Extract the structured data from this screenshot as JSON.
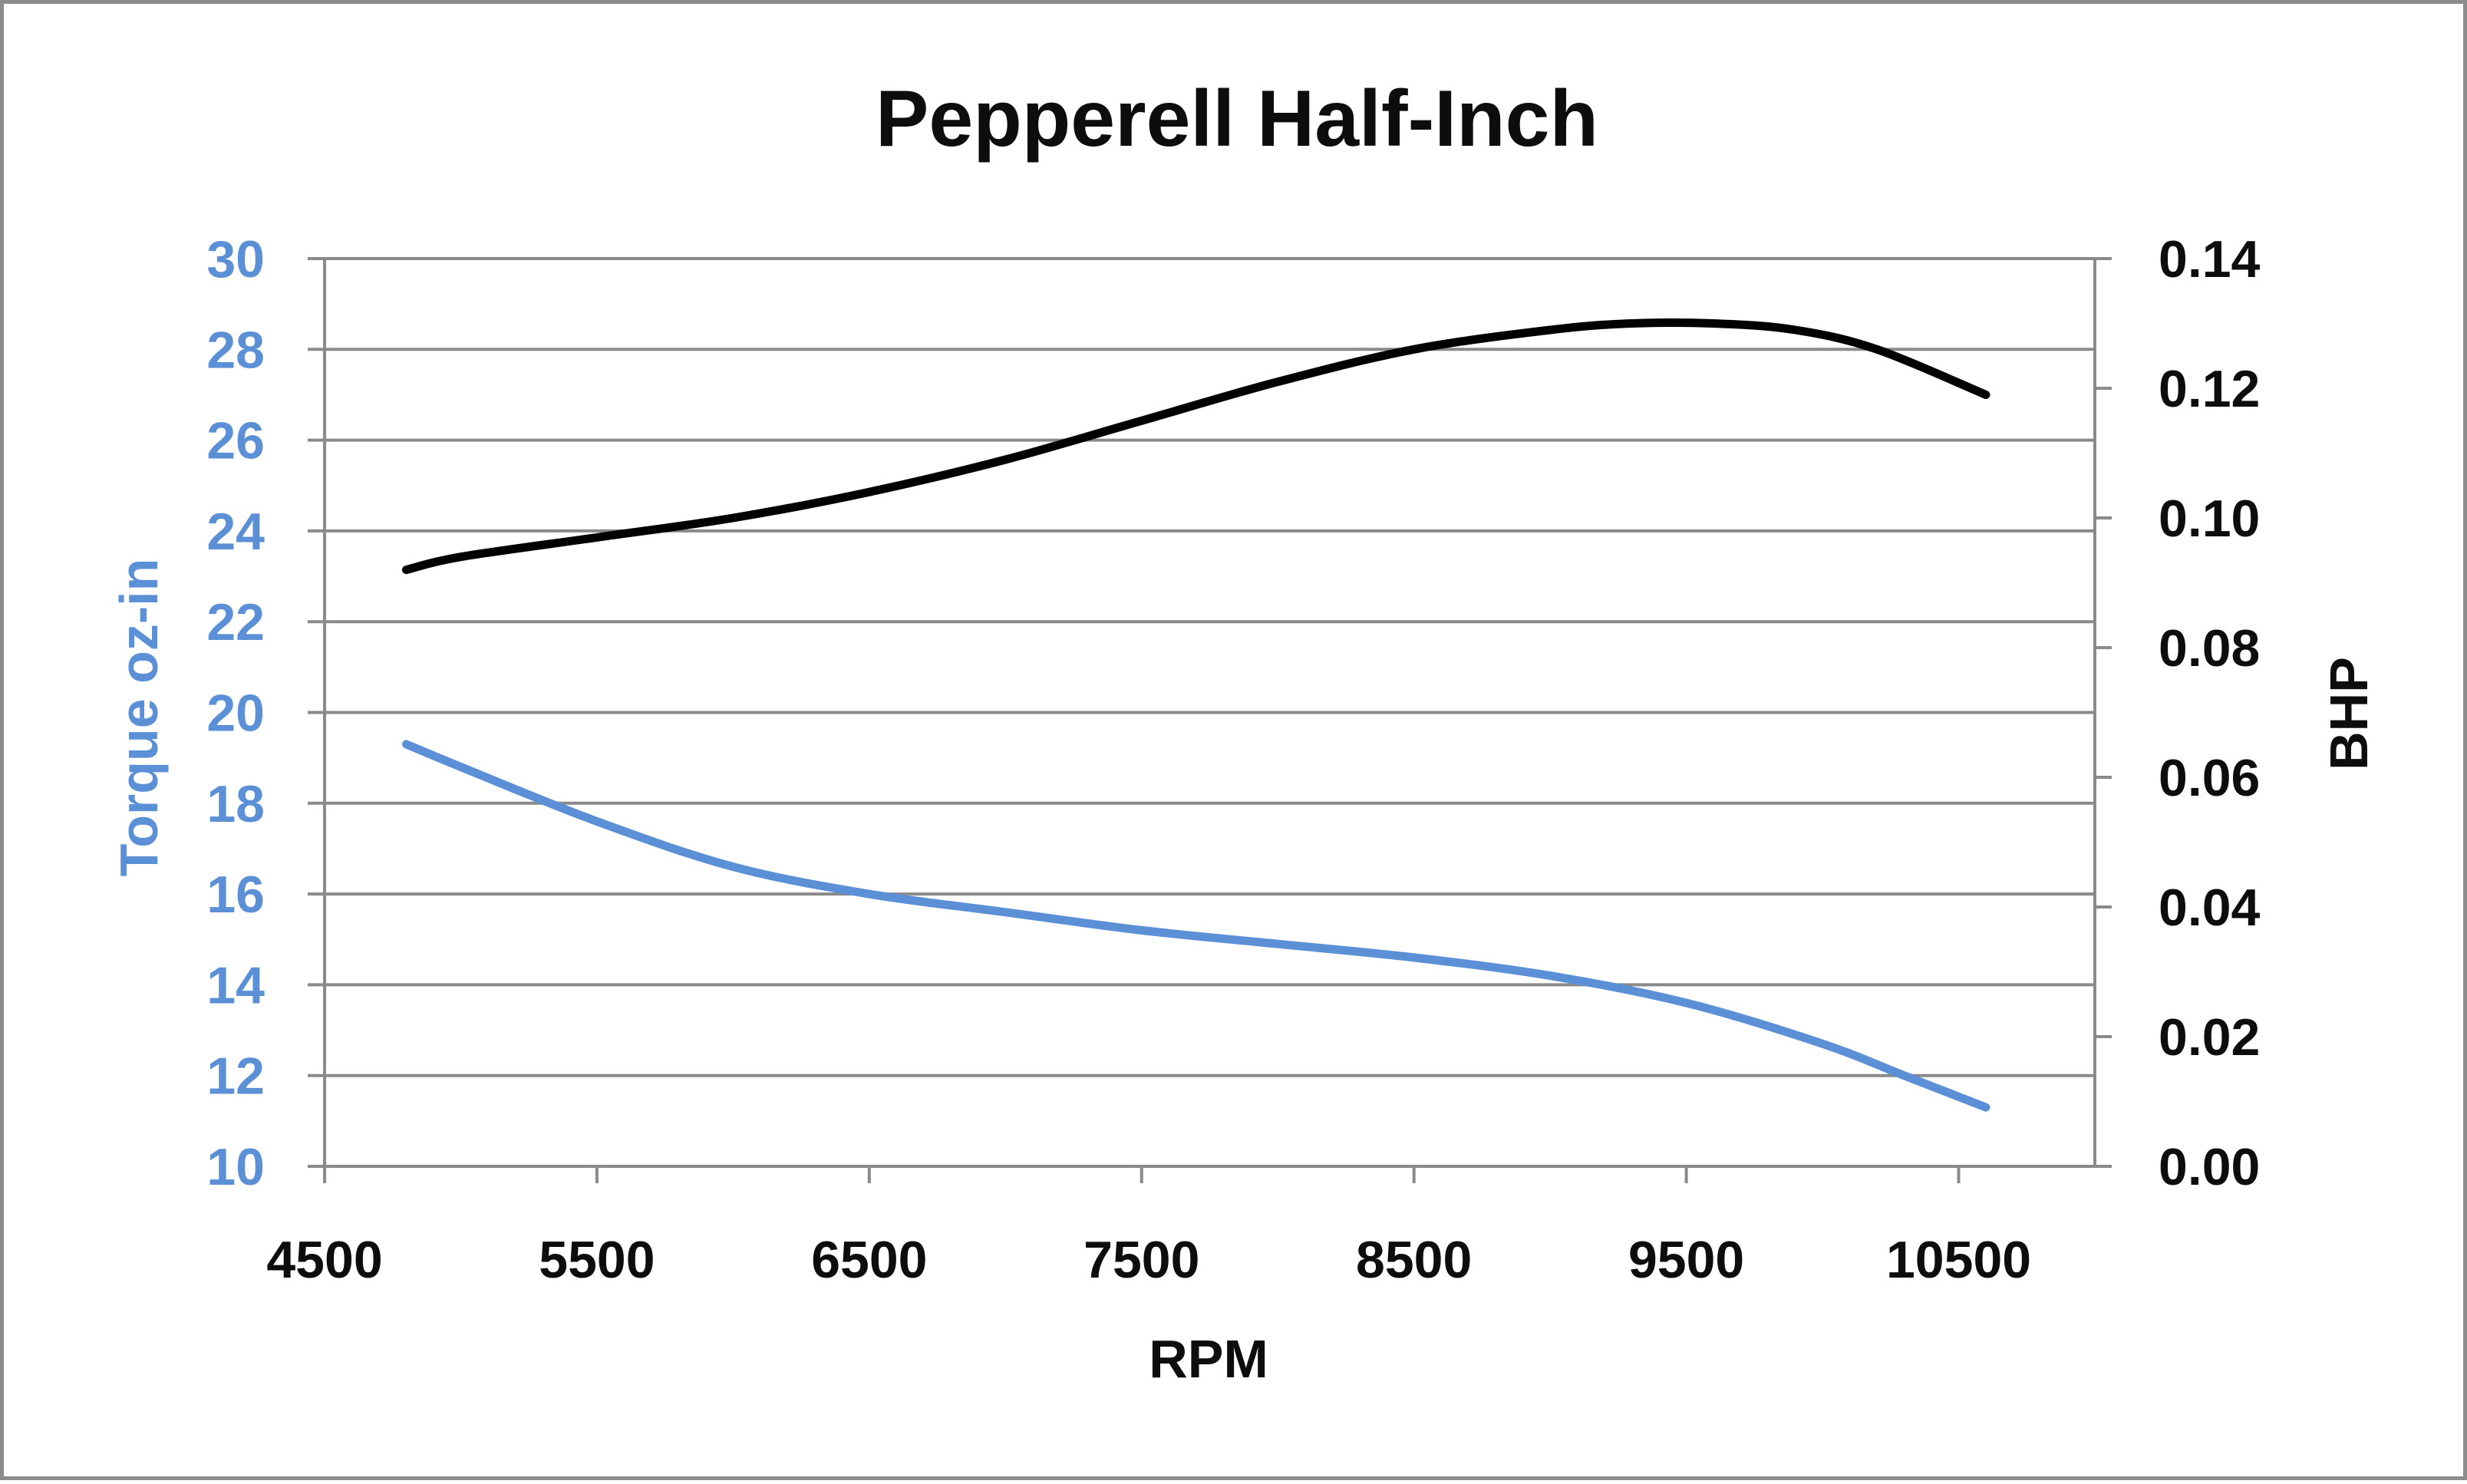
{
  "chart_data": {
    "type": "line",
    "title": "Pepperell Half-Inch",
    "xlabel": "RPM",
    "ylabel": "Torque oz-in",
    "y2label": "BHP",
    "xlim": [
      4500,
      11000
    ],
    "ylim": [
      10,
      30
    ],
    "y2lim": [
      0,
      0.14
    ],
    "x_ticks": [
      "4500",
      "5500",
      "6500",
      "7500",
      "8500",
      "9500",
      "10500"
    ],
    "y_ticks": [
      "30",
      "28",
      "26",
      "24",
      "22",
      "20",
      "18",
      "16",
      "14",
      "12",
      "10"
    ],
    "y2_ticks": [
      "0.14",
      "0.12",
      "0.10",
      "0.08",
      "0.06",
      "0.04",
      "0.02",
      "0.00"
    ],
    "grid": true,
    "legend": "none",
    "series": [
      {
        "axis": "left",
        "color": "#5b8fd6",
        "x": [
          4800,
          5000,
          5500,
          6000,
          6500,
          7000,
          7500,
          8000,
          8500,
          9000,
          9500,
          10000,
          10300,
          10600
        ],
        "values": [
          19.3,
          18.8,
          17.6,
          16.6,
          16.0,
          15.6,
          15.2,
          14.9,
          14.6,
          14.2,
          13.6,
          12.7,
          12.0,
          11.3
        ]
      },
      {
        "axis": "right",
        "color": "#000000",
        "x": [
          4800,
          5000,
          5500,
          6000,
          6500,
          7000,
          7500,
          8000,
          8500,
          9000,
          9300,
          9600,
          9900,
          10200,
          10600
        ],
        "values": [
          0.092,
          0.094,
          0.097,
          0.1,
          0.104,
          0.109,
          0.115,
          0.121,
          0.126,
          0.129,
          0.13,
          0.13,
          0.129,
          0.126,
          0.119
        ]
      }
    ]
  }
}
